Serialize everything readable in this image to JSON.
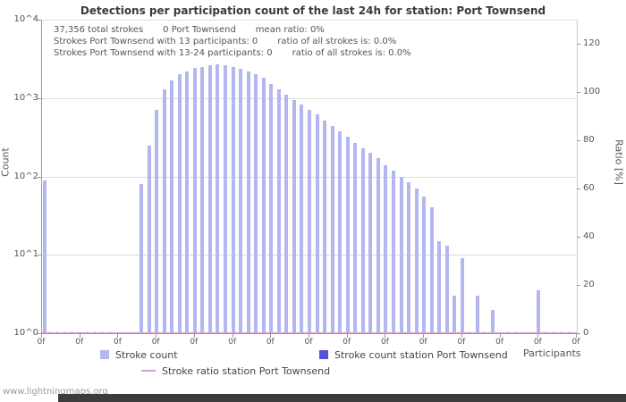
{
  "title": "Detections per participation count of the last 24h for station: Port Townsend",
  "stats": {
    "row1": [
      "37,356 total strokes",
      "0 Port Townsend",
      "mean ratio: 0%"
    ],
    "row2": [
      "Strokes Port Townsend with 13 participants: 0",
      "ratio of all strokes is: 0.0%"
    ],
    "row3": [
      "Strokes Port Townsend with 13-24 participants: 0",
      "ratio of all strokes is: 0.0%"
    ]
  },
  "footer": "www.lightningmaps.org",
  "chart_data": {
    "type": "bar",
    "title": "Detections per participation count of the last 24h for station: Port Townsend",
    "xlabel": "Participants",
    "y_left_label": "Count",
    "y_right_label": "Ratio [%]",
    "y_scale": "log10",
    "y_ticks": [
      "10^0",
      "10^1",
      "10^2",
      "10^3",
      "10^4"
    ],
    "y_right_ticks": [
      0,
      20,
      40,
      60,
      80,
      100,
      120
    ],
    "y_right_max": 130,
    "x_range": [
      0,
      70
    ],
    "x_tick_step": 5,
    "x_tick_label_text": "0f",
    "grid": "horizontal",
    "legend_position": "bottom",
    "series": [
      {
        "name": "Stroke count",
        "type": "bar",
        "color": "#b3b7ef",
        "x_is_participant_index": true,
        "values": [
          90,
          1,
          1,
          1,
          1,
          1,
          1,
          1,
          1,
          1,
          1,
          1,
          1,
          80,
          250,
          700,
          1300,
          1700,
          2000,
          2200,
          2400,
          2500,
          2600,
          2700,
          2600,
          2500,
          2350,
          2200,
          2000,
          1800,
          1500,
          1300,
          1100,
          950,
          820,
          700,
          620,
          520,
          440,
          380,
          320,
          270,
          230,
          200,
          170,
          140,
          120,
          100,
          85,
          70,
          55,
          40,
          15,
          13,
          3,
          9,
          0,
          3,
          0,
          2,
          0,
          0,
          0,
          0,
          0,
          3.5
        ]
      },
      {
        "name": "Stroke count station Port Townsend",
        "type": "bar",
        "color": "#5156d6",
        "constant_value": 0
      },
      {
        "name": "Stroke ratio station Port Townsend",
        "type": "line",
        "color": "#e09ad8",
        "constant_percent": 0
      }
    ]
  }
}
